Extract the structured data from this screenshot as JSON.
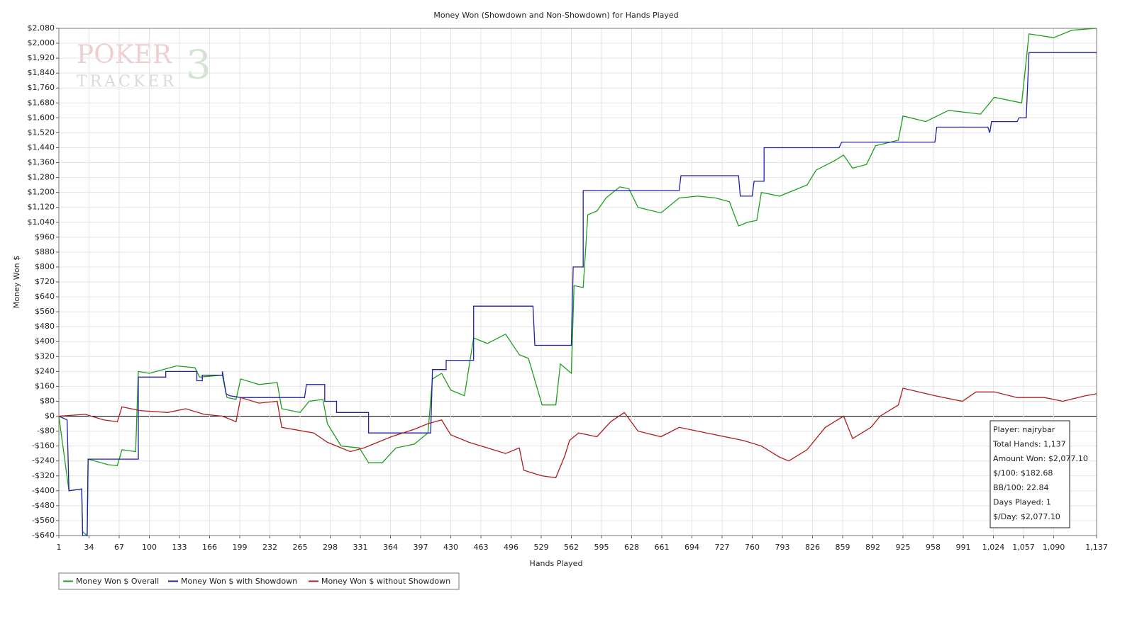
{
  "chart_data": {
    "type": "line",
    "title": "Money Won (Showdown and Non-Showdown) for Hands Played",
    "x_label": "Hands Played",
    "y_label": "Money Won $",
    "watermark": [
      "POKER",
      "TRACKER",
      "3"
    ],
    "xlim": [
      1,
      1137
    ],
    "ylim": [
      -640,
      2080
    ],
    "grid": true,
    "legend": "bottom-left",
    "xticks": [
      1,
      34,
      67,
      100,
      133,
      166,
      199,
      232,
      265,
      298,
      331,
      364,
      397,
      430,
      463,
      496,
      529,
      562,
      595,
      628,
      661,
      694,
      727,
      760,
      793,
      826,
      859,
      892,
      925,
      958,
      991,
      {
        "value": 1024,
        "label": "1,024"
      },
      {
        "value": 1057,
        "label": "1,057"
      },
      {
        "value": 1090,
        "label": "1,090"
      },
      {
        "value": 1137,
        "label": "1,137"
      }
    ],
    "yticks": [
      {
        "value": -640,
        "label": "-$640"
      },
      {
        "value": -560,
        "label": "-$560"
      },
      {
        "value": -480,
        "label": "-$480"
      },
      {
        "value": -400,
        "label": "-$400"
      },
      {
        "value": -320,
        "label": "-$320"
      },
      {
        "value": -240,
        "label": "-$240"
      },
      {
        "value": -160,
        "label": "-$160"
      },
      {
        "value": -80,
        "label": "-$80"
      },
      {
        "value": 0,
        "label": "$0"
      },
      {
        "value": 80,
        "label": "$80"
      },
      {
        "value": 160,
        "label": "$160"
      },
      {
        "value": 240,
        "label": "$240"
      },
      {
        "value": 320,
        "label": "$320"
      },
      {
        "value": 400,
        "label": "$400"
      },
      {
        "value": 480,
        "label": "$480"
      },
      {
        "value": 560,
        "label": "$560"
      },
      {
        "value": 640,
        "label": "$640"
      },
      {
        "value": 720,
        "label": "$720"
      },
      {
        "value": 800,
        "label": "$800"
      },
      {
        "value": 880,
        "label": "$880"
      },
      {
        "value": 960,
        "label": "$960"
      },
      {
        "value": 1040,
        "label": "$1,040"
      },
      {
        "value": 1120,
        "label": "$1,120"
      },
      {
        "value": 1200,
        "label": "$1,200"
      },
      {
        "value": 1280,
        "label": "$1,280"
      },
      {
        "value": 1360,
        "label": "$1,360"
      },
      {
        "value": 1440,
        "label": "$1,440"
      },
      {
        "value": 1520,
        "label": "$1,520"
      },
      {
        "value": 1600,
        "label": "$1,600"
      },
      {
        "value": 1680,
        "label": "$1,680"
      },
      {
        "value": 1760,
        "label": "$1,760"
      },
      {
        "value": 1840,
        "label": "$1,840"
      },
      {
        "value": 1920,
        "label": "$1,920"
      },
      {
        "value": 2000,
        "label": "$2,000"
      },
      {
        "value": 2080,
        "label": "$2,080"
      }
    ],
    "series": [
      {
        "name": "Money Won $ Overall",
        "color": "#1ca01c",
        "x": [
          1,
          12,
          26,
          27,
          32,
          33,
          55,
          65,
          70,
          85,
          88,
          100,
          115,
          130,
          150,
          155,
          180,
          185,
          195,
          200,
          220,
          240,
          245,
          265,
          275,
          290,
          295,
          310,
          330,
          340,
          355,
          370,
          390,
          405,
          410,
          420,
          430,
          445,
          455,
          470,
          490,
          505,
          515,
          530,
          545,
          550,
          562,
          565,
          575,
          580,
          590,
          600,
          615,
          625,
          635,
          660,
          680,
          700,
          720,
          735,
          745,
          755,
          765,
          770,
          790,
          805,
          820,
          830,
          850,
          860,
          870,
          885,
          895,
          920,
          925,
          950,
          975,
          1010,
          1025,
          1055,
          1063,
          1090,
          1110,
          1137
        ],
        "values": [
          0,
          -400,
          -390,
          -620,
          -640,
          -230,
          -260,
          -265,
          -180,
          -190,
          240,
          230,
          250,
          270,
          260,
          210,
          220,
          100,
          90,
          200,
          170,
          180,
          40,
          20,
          80,
          90,
          -40,
          -160,
          -170,
          -250,
          -250,
          -170,
          -150,
          -90,
          200,
          230,
          140,
          110,
          420,
          390,
          440,
          330,
          310,
          60,
          60,
          280,
          230,
          700,
          690,
          1080,
          1100,
          1170,
          1230,
          1220,
          1120,
          1090,
          1170,
          1180,
          1170,
          1150,
          1020,
          1040,
          1050,
          1200,
          1180,
          1210,
          1240,
          1320,
          1370,
          1400,
          1330,
          1350,
          1450,
          1480,
          1610,
          1580,
          1640,
          1620,
          1710,
          1680,
          2050,
          2030,
          2070,
          2080
        ]
      },
      {
        "name": "Money Won $ with Showdown",
        "color": "#1f1fa8",
        "x": [
          1,
          10,
          12,
          26,
          27,
          32,
          33,
          88,
          88,
          118,
          118,
          152,
          152,
          158,
          158,
          180,
          180,
          184,
          188,
          200,
          270,
          272,
          292,
          292,
          305,
          305,
          340,
          340,
          408,
          410,
          425,
          425,
          455,
          455,
          520,
          522,
          562,
          564,
          575,
          575,
          680,
          682,
          745,
          747,
          760,
          762,
          773,
          773,
          855,
          858,
          960,
          962,
          1018,
          1020,
          1022,
          1050,
          1052,
          1060,
          1063,
          1137
        ],
        "values": [
          0,
          -20,
          -400,
          -390,
          -640,
          -640,
          -230,
          -230,
          210,
          210,
          240,
          240,
          190,
          190,
          220,
          220,
          240,
          120,
          110,
          100,
          100,
          170,
          170,
          80,
          80,
          20,
          20,
          -90,
          -90,
          250,
          250,
          300,
          300,
          590,
          590,
          380,
          380,
          800,
          800,
          1210,
          1210,
          1290,
          1290,
          1180,
          1180,
          1260,
          1260,
          1440,
          1440,
          1470,
          1470,
          1550,
          1550,
          1520,
          1580,
          1580,
          1600,
          1600,
          1950,
          1950
        ]
      },
      {
        "name": "Money Won $ without Showdown",
        "color": "#b01c1c",
        "x": [
          1,
          30,
          50,
          65,
          70,
          90,
          120,
          140,
          160,
          180,
          195,
          200,
          220,
          240,
          245,
          280,
          295,
          320,
          335,
          345,
          365,
          390,
          405,
          420,
          430,
          450,
          470,
          490,
          505,
          510,
          530,
          545,
          555,
          560,
          570,
          590,
          605,
          620,
          635,
          660,
          680,
          720,
          750,
          770,
          790,
          800,
          820,
          840,
          860,
          870,
          890,
          900,
          920,
          925,
          960,
          990,
          1005,
          1025,
          1050,
          1080,
          1100,
          1125,
          1137
        ],
        "values": [
          0,
          10,
          -20,
          -30,
          50,
          30,
          20,
          40,
          10,
          0,
          -30,
          100,
          70,
          80,
          -60,
          -90,
          -140,
          -190,
          -170,
          -150,
          -110,
          -70,
          -40,
          -20,
          -100,
          -140,
          -170,
          -200,
          -170,
          -290,
          -320,
          -330,
          -210,
          -130,
          -90,
          -110,
          -30,
          20,
          -80,
          -110,
          -60,
          -100,
          -130,
          -160,
          -220,
          -240,
          -180,
          -60,
          0,
          -120,
          -60,
          0,
          60,
          150,
          110,
          80,
          130,
          130,
          100,
          100,
          80,
          110,
          120
        ]
      }
    ],
    "info_box": [
      "Player: najrybar",
      "Total Hands: 1,137",
      "Amount Won: $2,077.10",
      "$/100: $182.68",
      "BB/100: 22.84",
      "Days Played: 1",
      "$/Day: $2,077.10"
    ]
  }
}
